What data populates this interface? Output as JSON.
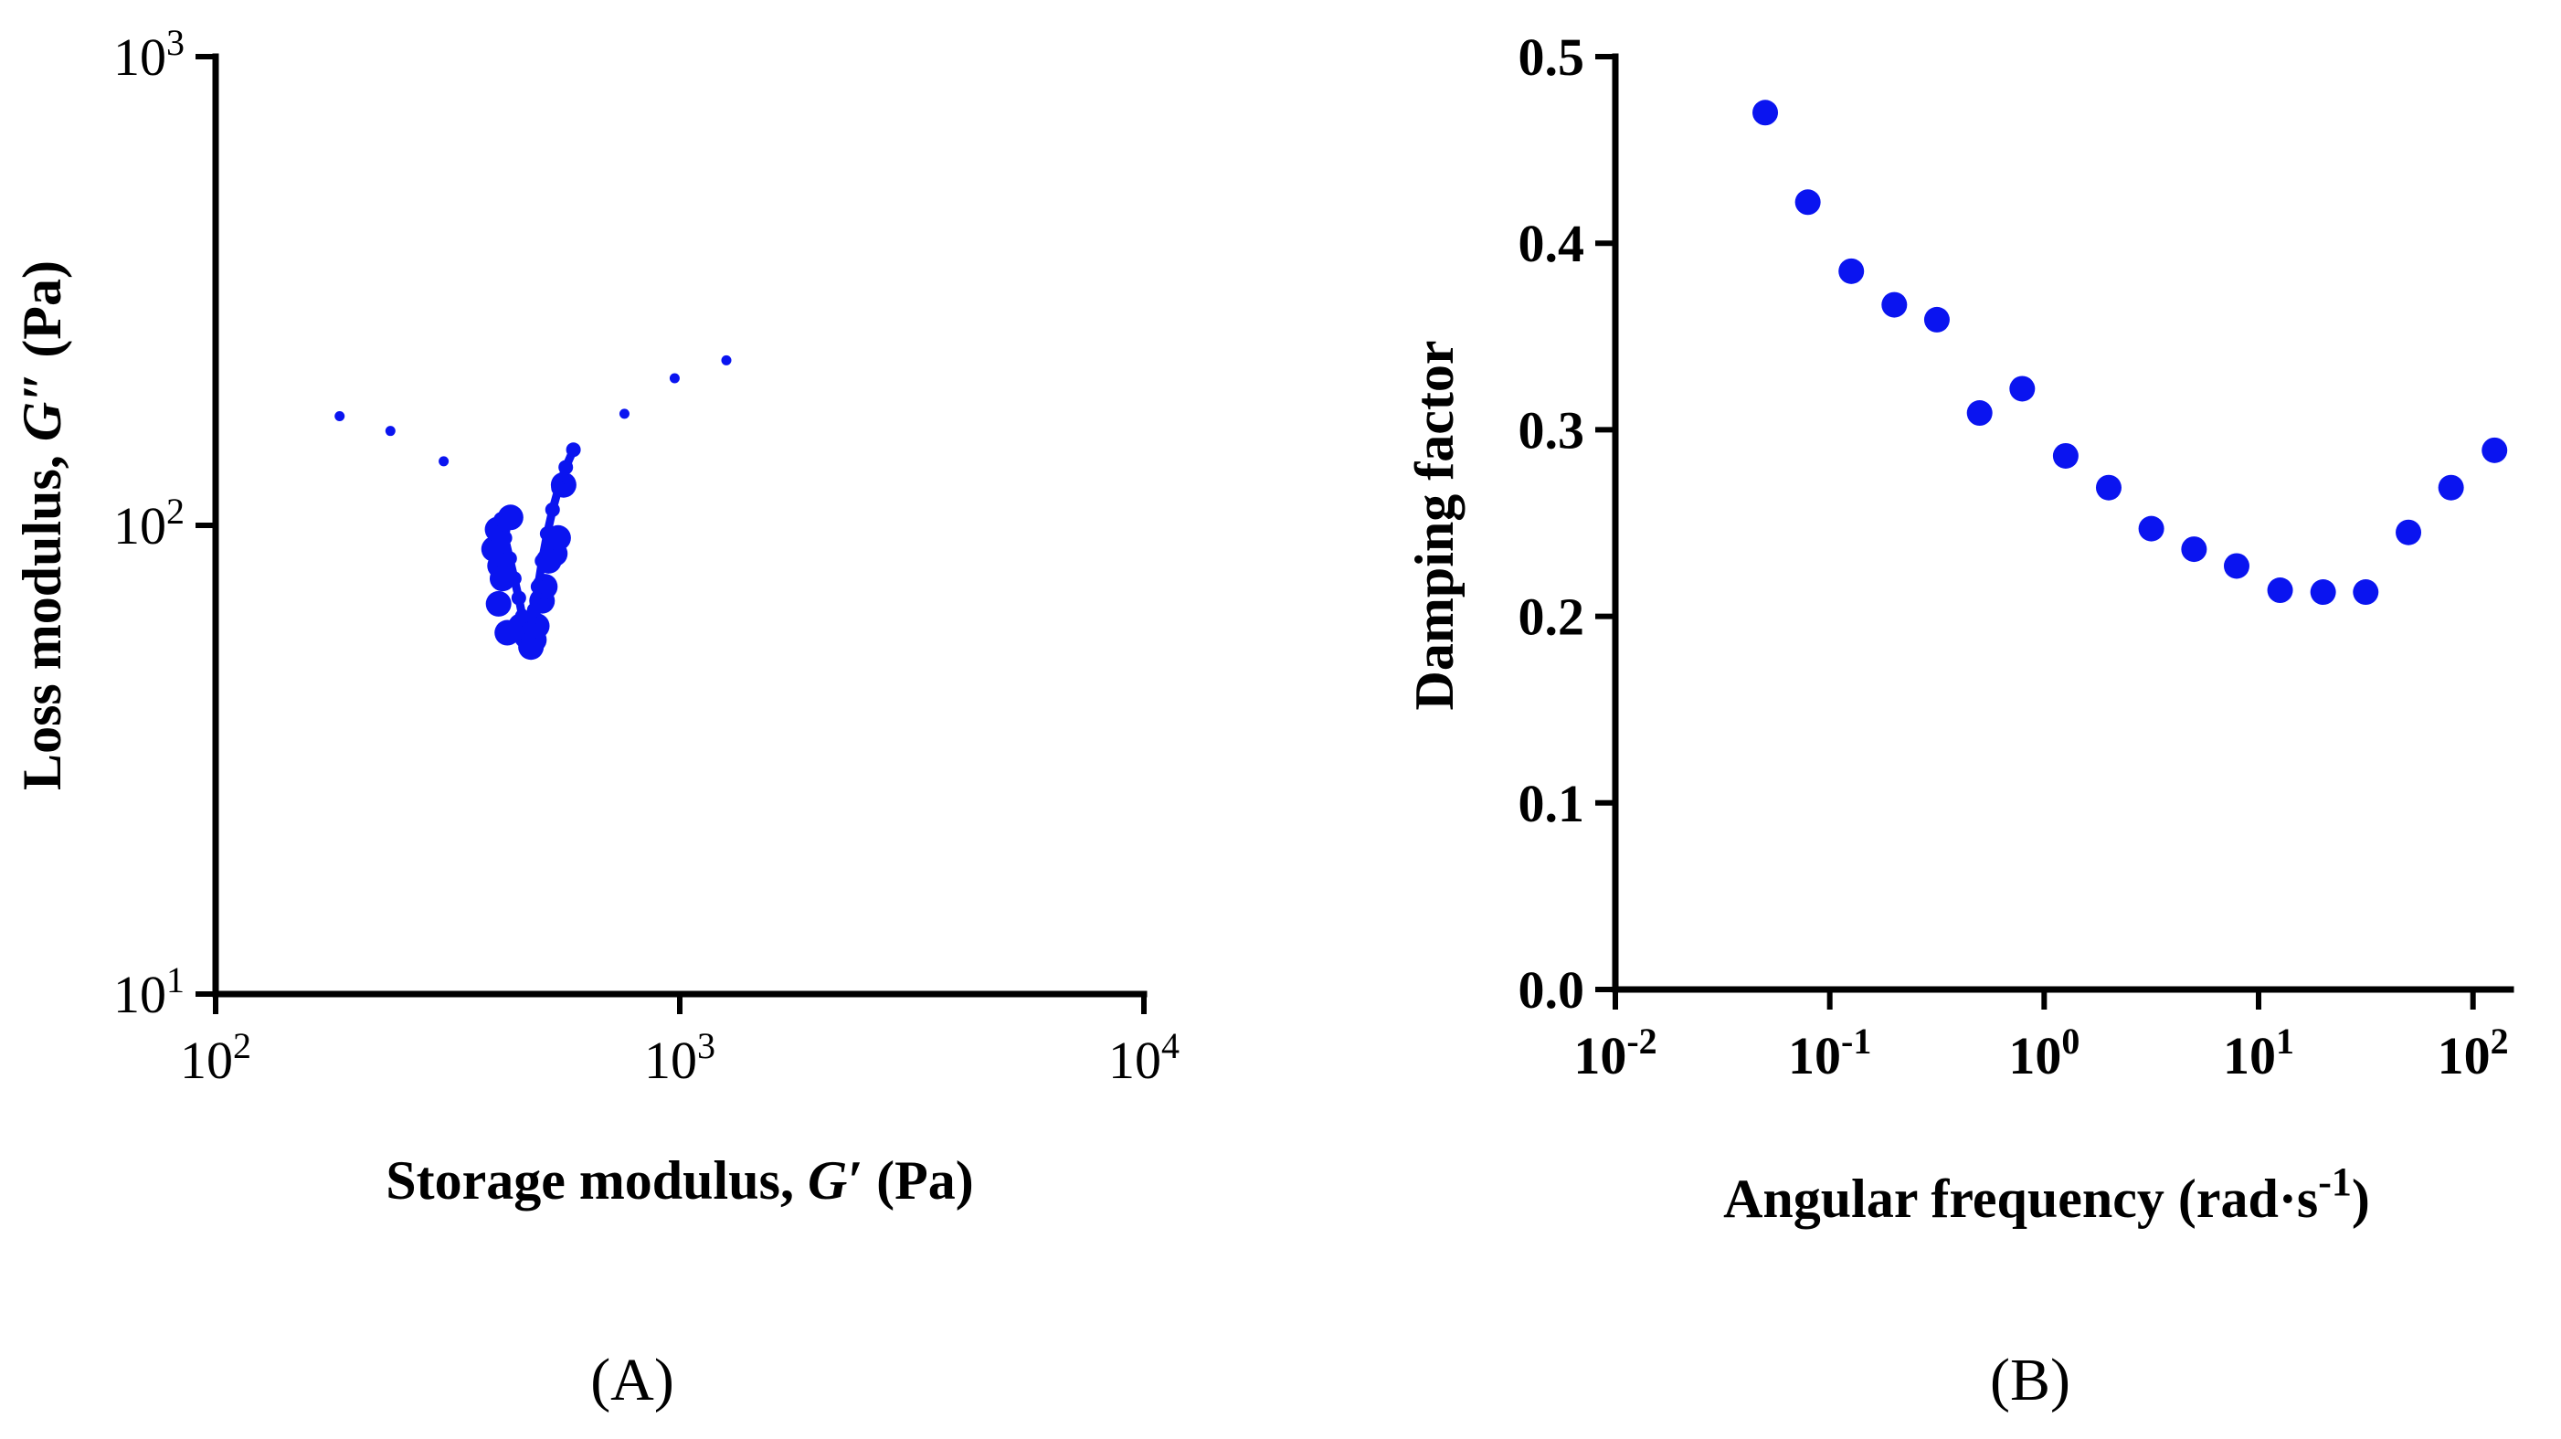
{
  "chart_data": [
    {
      "type": "scatter",
      "panel_label": "(A)",
      "x_scale": "log",
      "y_scale": "log",
      "xlim": [
        100,
        10000
      ],
      "ylim": [
        10,
        1000
      ],
      "x_ticks": [
        {
          "base": "10",
          "exp": "2"
        },
        {
          "base": "10",
          "exp": "3"
        },
        {
          "base": "10",
          "exp": "4"
        }
      ],
      "y_ticks": [
        {
          "base": "10",
          "exp": "1"
        },
        {
          "base": "10",
          "exp": "2"
        },
        {
          "base": "10",
          "exp": "3"
        }
      ],
      "xlabel": {
        "pre": "Storage modulus, ",
        "sym": "G′",
        "post": " (Pa)"
      },
      "ylabel": {
        "pre": "Loss modulus, ",
        "sym": "G″",
        "post": " (Pa)"
      },
      "color": "#0a14f0",
      "series": [
        {
          "name": "small dots",
          "marker": "small",
          "points": [
            [
              185,
              171
            ],
            [
              238,
              159
            ],
            [
              310,
              137
            ],
            [
              760,
              173
            ],
            [
              975,
              206
            ],
            [
              1260,
              225
            ]
          ]
        },
        {
          "name": "large markers",
          "marker": "large",
          "points": [
            [
              398,
              89
            ],
            [
              405,
              98
            ],
            [
              410,
              82
            ],
            [
              407,
              68
            ],
            [
              415,
              77
            ],
            [
              425,
              59
            ],
            [
              432,
              104
            ],
            [
              455,
              61
            ],
            [
              468,
              58
            ],
            [
              478,
              55
            ],
            [
              485,
              57
            ],
            [
              492,
              61
            ],
            [
              505,
              69
            ],
            [
              512,
              74
            ],
            [
              522,
              84
            ],
            [
              538,
              87
            ],
            [
              547,
              94
            ],
            [
              562,
              122
            ]
          ]
        },
        {
          "name": "dense trace",
          "marker": "line",
          "points": [
            [
              412,
              103
            ],
            [
              420,
              94
            ],
            [
              430,
              85
            ],
            [
              440,
              77
            ],
            [
              450,
              70
            ],
            [
              458,
              64
            ],
            [
              466,
              59
            ],
            [
              472,
              57
            ],
            [
              478,
              60
            ],
            [
              486,
              66
            ],
            [
              495,
              74
            ],
            [
              505,
              84
            ],
            [
              518,
              96
            ],
            [
              532,
              108
            ],
            [
              548,
              120
            ],
            [
              568,
              133
            ],
            [
              590,
              145
            ]
          ]
        }
      ]
    },
    {
      "type": "scatter",
      "panel_label": "(B)",
      "x_scale": "log",
      "y_scale": "linear",
      "xlim": [
        0.01,
        150
      ],
      "ylim": [
        0,
        0.5
      ],
      "x_ticks": [
        {
          "base": "10",
          "exp": "-2"
        },
        {
          "base": "10",
          "exp": "-1"
        },
        {
          "base": "10",
          "exp": "0"
        },
        {
          "base": "10",
          "exp": "1"
        },
        {
          "base": "10",
          "exp": "2"
        }
      ],
      "y_ticks": [
        "0.0",
        "0.1",
        "0.2",
        "0.3",
        "0.4",
        "0.5"
      ],
      "xlabel": {
        "main": "Angular frequency (rad·s",
        "sup": "-1",
        "end": ")"
      },
      "ylabel": "Damping factor",
      "color": "#0a14f0",
      "x": [
        0.05,
        0.079,
        0.126,
        0.2,
        0.316,
        0.5,
        0.79,
        1.26,
        2.0,
        3.16,
        5.0,
        7.9,
        12.6,
        20,
        31.6,
        50,
        79,
        126
      ],
      "y": [
        0.47,
        0.422,
        0.385,
        0.367,
        0.359,
        0.309,
        0.322,
        0.286,
        0.269,
        0.247,
        0.236,
        0.227,
        0.214,
        0.213,
        0.213,
        0.245,
        0.269,
        0.289
      ]
    }
  ]
}
